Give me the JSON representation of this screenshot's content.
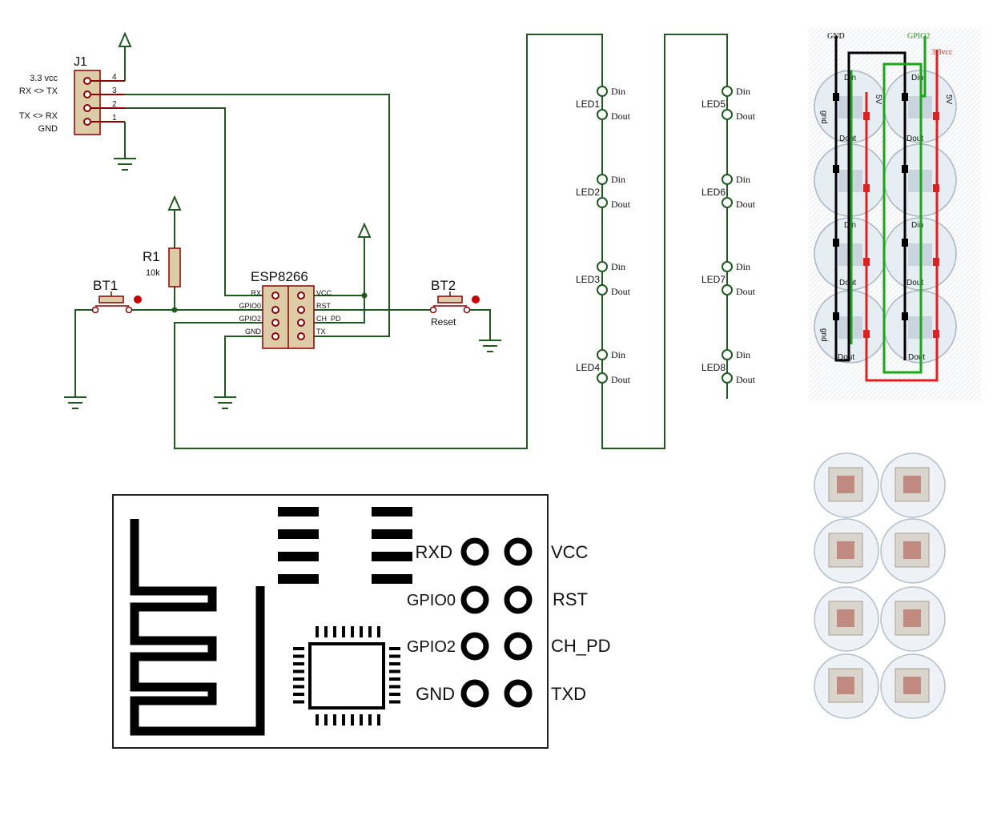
{
  "colors": {
    "wire": "#1f5a1f",
    "body": "#dccca8",
    "pin": "#8b0000",
    "black": "#000000",
    "green": "#1aa81a",
    "red": "#e02020",
    "rxd": "#22cc22",
    "gpio": "#6a6adf",
    "vcc": "#e02020",
    "rst_pd": "#2020cc",
    "txd": "#e08a20",
    "pcb": "#e8eef4"
  },
  "j1": {
    "ref": "J1",
    "labels": [
      "3.3 vcc",
      "RX <> TX",
      "TX <> RX",
      "GND"
    ],
    "pins": [
      "4",
      "3",
      "2",
      "1"
    ]
  },
  "r1": {
    "ref": "R1",
    "value": "10k"
  },
  "bt1": {
    "ref": "BT1"
  },
  "bt2": {
    "ref": "BT2",
    "label": "Reset"
  },
  "esp": {
    "ref": "ESP8266",
    "left_pins": [
      "RX",
      "GPIO0",
      "GPIO2",
      "GND"
    ],
    "right_pins": [
      "VCC",
      "RST",
      "CH_PD",
      "TX"
    ]
  },
  "leds": {
    "names": [
      "LED1",
      "LED2",
      "LED3",
      "LED4",
      "LED5",
      "LED6",
      "LED7",
      "LED8"
    ],
    "din": "Din",
    "dout": "Dout"
  },
  "board_photo": {
    "gnd_label": "GND",
    "gpio2_label": "GPIO2",
    "vcc_label": "3.3vcc",
    "pad_din": "Din",
    "pad_dout": "Dout",
    "pad_5v": "5V",
    "pad_gnd": "gnd"
  },
  "module": {
    "labels_left": [
      "RXD",
      "GPIO0",
      "GPIO2",
      "GND"
    ],
    "labels_right": [
      "VCC",
      "RST",
      "CH_PD",
      "TXD"
    ]
  }
}
